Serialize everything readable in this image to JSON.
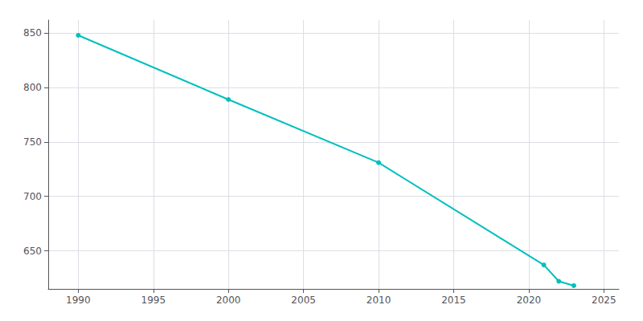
{
  "chart_data": {
    "type": "line",
    "x": [
      1990,
      2000,
      2010,
      2021,
      2022,
      2023
    ],
    "values": [
      848,
      789,
      731,
      637,
      622,
      618
    ],
    "color": "#00BFBF",
    "marker": "circle",
    "xlim": [
      1988,
      2026
    ],
    "ylim": [
      615,
      862
    ],
    "xticks": [
      1990,
      1995,
      2000,
      2005,
      2010,
      2015,
      2020,
      2025
    ],
    "yticks": [
      650,
      700,
      750,
      800,
      850
    ],
    "grid": true
  }
}
